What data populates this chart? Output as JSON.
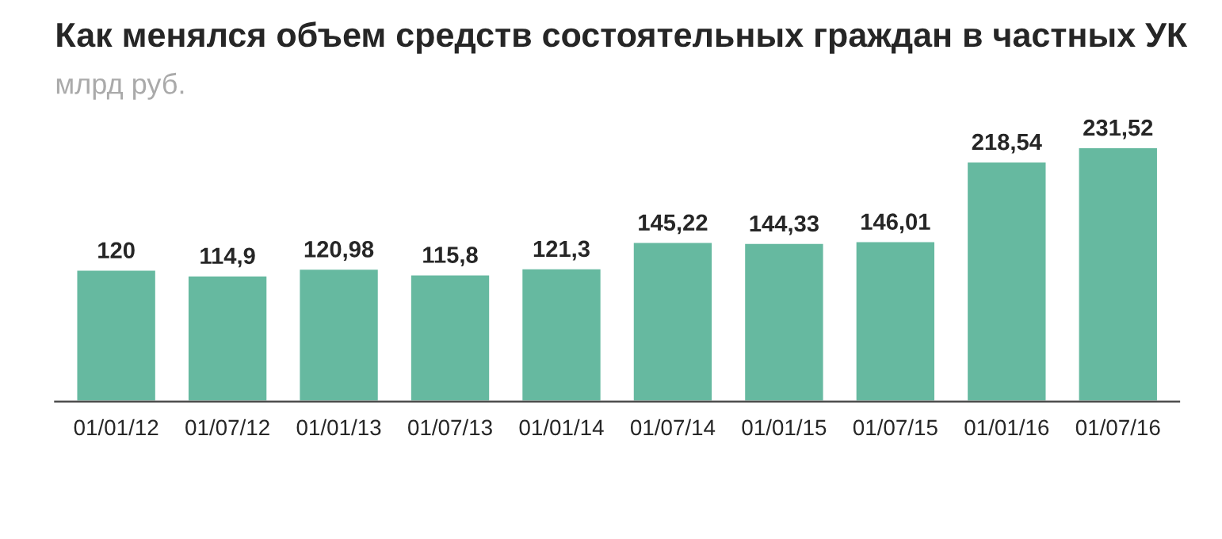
{
  "chart_data": {
    "type": "bar",
    "title": "Как менялся объем средств состоятельных граждан в частных УК",
    "subtitle": "млрд руб.",
    "categories": [
      "01/01/12",
      "01/07/12",
      "01/01/13",
      "01/07/13",
      "01/01/14",
      "01/07/14",
      "01/01/15",
      "01/07/15",
      "01/01/16",
      "01/07/16"
    ],
    "values": [
      120,
      114.9,
      120.98,
      115.8,
      121.3,
      145.22,
      144.33,
      146.01,
      218.54,
      231.52
    ],
    "value_labels": [
      "120",
      "114,9",
      "120,98",
      "115,8",
      "121,3",
      "145,22",
      "144,33",
      "146,01",
      "218,54",
      "231,52"
    ],
    "color": "#66b9a0",
    "grid": false,
    "legend": false
  }
}
